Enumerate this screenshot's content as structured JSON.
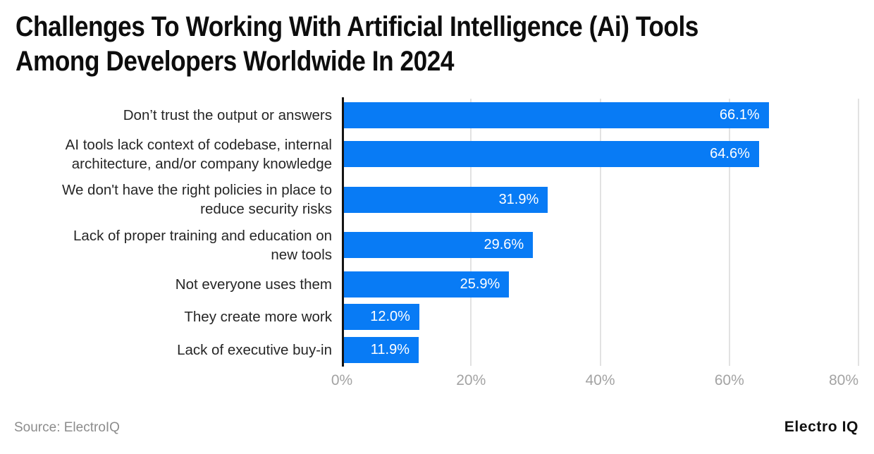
{
  "header": {
    "title_line1": "Challenges To Working With Artificial Intelligence (Ai) Tools",
    "title_line2": "Among Developers Worldwide In 2024"
  },
  "footer": {
    "source": "Source: ElectroIQ",
    "brand": "Electro IQ"
  },
  "colors": {
    "bar": "#087bf5",
    "grid": "#e2e2e2",
    "axis": "#141414",
    "tick": "#a3a3a3",
    "label": "#262626",
    "val": "#ffffff",
    "title": "#0d0d0d",
    "source": "#8c8c8c",
    "bg": "#ffffff"
  },
  "chart_data": {
    "type": "bar",
    "orientation": "horizontal",
    "title": "Challenges To Working With Artificial Intelligence (Ai) Tools Among Developers Worldwide In 2024",
    "categories": [
      "Don’t trust the output or answers",
      "AI tools lack context of codebase, internal architecture, and/or company knowledge",
      "We don't have the right policies in place to reduce security risks",
      "Lack of proper training and education on new tools",
      "Not everyone uses them",
      "They create more work",
      "Lack of executive buy-in"
    ],
    "label_lines": [
      [
        "Don’t trust the output or answers"
      ],
      [
        "AI tools lack context of codebase, internal",
        "architecture, and/or company knowledge"
      ],
      [
        "We don't have the right policies in place to",
        "reduce security risks"
      ],
      [
        "Lack of proper training and education on",
        "new tools"
      ],
      [
        "Not everyone uses them"
      ],
      [
        "They create more work"
      ],
      [
        "Lack of executive buy-in"
      ]
    ],
    "values": [
      66.1,
      64.6,
      31.9,
      29.6,
      25.9,
      12.0,
      11.9
    ],
    "value_labels": [
      "66.1%",
      "64.6%",
      "31.9%",
      "29.6%",
      "25.9%",
      "12.0%",
      "11.9%"
    ],
    "xlabel": "",
    "ylabel": "",
    "xlim": [
      0,
      80
    ],
    "x_ticks": [
      "0%",
      "20%",
      "40%",
      "60%",
      "80%"
    ],
    "x_tick_values": [
      0,
      20,
      40,
      60,
      80
    ],
    "grid": "vertical",
    "legend": "none",
    "source": "ElectroIQ"
  }
}
